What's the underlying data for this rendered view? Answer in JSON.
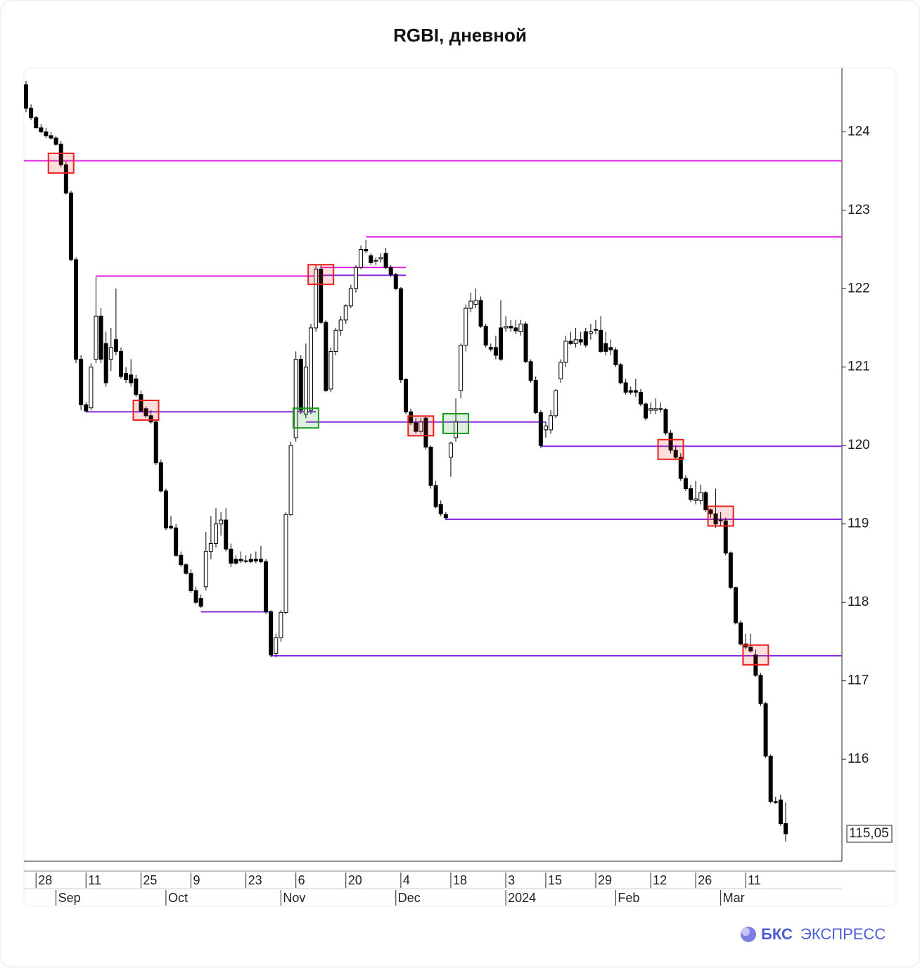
{
  "chart_data": {
    "type": "candlestick",
    "title": "RGBI, дневной",
    "open": [
      124.6,
      124.3,
      124.18,
      124.05,
      124.0,
      123.95,
      123.92,
      123.84,
      123.58,
      123.22,
      122.37,
      121.1,
      120.52,
      120.48,
      121.1,
      121.65,
      121.3,
      121.1,
      121.35,
      121.2,
      120.92,
      120.9,
      120.85,
      120.65,
      120.47,
      120.38,
      120.3,
      119.78,
      119.42,
      118.97,
      118.95,
      118.6,
      118.48,
      118.37,
      118.15,
      118.05,
      118.2,
      118.65,
      118.75,
      119.0,
      119.05,
      118.68,
      118.55,
      118.55,
      118.53,
      118.55,
      118.55,
      118.55,
      118.52,
      117.88,
      117.35,
      117.55,
      117.87,
      119.12,
      120.1,
      121.1,
      120.4,
      120.45,
      121.5,
      122.25,
      121.57,
      120.72,
      121.2,
      121.47,
      121.6,
      121.78,
      122.0,
      122.27,
      122.5,
      122.42,
      122.35,
      122.38,
      122.45,
      122.27,
      122.18,
      122.0,
      120.84,
      120.43,
      120.29,
      120.18,
      120.35,
      119.98,
      119.49,
      119.25,
      119.12,
      119.85,
      120.1,
      120.7,
      121.28,
      121.75,
      121.8,
      121.85,
      121.52,
      121.25,
      121.25,
      121.5,
      121.5,
      121.52,
      121.5,
      121.45,
      121.55,
      121.07,
      120.83,
      120.42,
      120.2,
      120.2,
      120.38,
      120.85,
      121.06,
      121.33,
      121.3,
      121.35,
      121.45,
      121.43,
      121.48,
      121.47,
      121.3,
      121.25,
      121.22,
      121.03,
      120.8,
      120.7,
      120.7,
      120.68,
      120.53,
      120.45,
      120.45,
      120.47,
      120.46,
      120.16,
      119.94,
      119.85,
      119.58,
      119.45,
      119.3,
      119.3,
      119.4,
      119.18,
      119.13,
      119.05,
      119.04,
      118.63,
      118.19,
      117.74,
      117.47,
      117.43,
      117.33,
      117.07,
      116.71,
      116.04,
      115.46,
      115.48,
      115.18
    ],
    "high": [
      124.65,
      124.35,
      124.2,
      124.1,
      124.05,
      124.0,
      123.95,
      123.88,
      123.62,
      123.25,
      122.4,
      121.15,
      120.55,
      121.05,
      122.15,
      121.75,
      121.45,
      121.5,
      122.0,
      121.25,
      121.0,
      121.1,
      120.9,
      120.7,
      120.5,
      120.45,
      120.32,
      119.82,
      119.45,
      119.1,
      119.0,
      118.65,
      118.5,
      118.42,
      118.2,
      118.1,
      118.9,
      119.1,
      119.2,
      119.15,
      119.2,
      118.75,
      118.6,
      118.65,
      118.6,
      118.62,
      118.65,
      118.72,
      118.55,
      117.9,
      117.6,
      117.9,
      119.15,
      120.05,
      121.2,
      121.15,
      121.3,
      121.55,
      122.3,
      122.3,
      121.6,
      121.25,
      121.5,
      121.65,
      121.8,
      122.05,
      122.3,
      122.55,
      122.62,
      122.45,
      122.4,
      122.45,
      122.52,
      122.3,
      122.2,
      122.02,
      120.86,
      120.47,
      120.35,
      120.35,
      120.38,
      120.0,
      119.55,
      119.3,
      119.15,
      120.05,
      120.6,
      121.3,
      121.8,
      121.95,
      122.0,
      121.9,
      121.55,
      121.3,
      121.4,
      121.85,
      121.65,
      121.6,
      121.6,
      121.6,
      121.58,
      121.1,
      120.88,
      120.45,
      120.3,
      120.45,
      120.72,
      121.1,
      121.4,
      121.45,
      121.5,
      121.45,
      121.5,
      121.55,
      121.6,
      121.65,
      121.45,
      121.35,
      121.25,
      121.05,
      120.85,
      120.75,
      120.85,
      120.72,
      120.55,
      120.55,
      120.6,
      120.55,
      120.48,
      120.2,
      120.0,
      119.9,
      119.62,
      119.5,
      119.55,
      119.5,
      119.42,
      119.2,
      119.45,
      119.15,
      119.08,
      118.65,
      118.2,
      117.77,
      117.6,
      117.6,
      117.4,
      117.1,
      116.73,
      116.06,
      115.52,
      115.55,
      115.45
    ],
    "low": [
      124.25,
      124.15,
      124.05,
      123.98,
      123.92,
      123.9,
      123.82,
      123.55,
      123.2,
      122.35,
      121.05,
      120.45,
      120.42,
      120.45,
      121.05,
      121.05,
      120.75,
      120.95,
      121.15,
      120.85,
      120.8,
      120.75,
      120.62,
      120.42,
      120.35,
      120.28,
      119.75,
      119.4,
      118.92,
      118.93,
      118.58,
      118.45,
      118.35,
      118.12,
      117.98,
      117.93,
      118.15,
      118.55,
      118.7,
      118.85,
      118.65,
      118.45,
      118.48,
      118.5,
      118.5,
      118.5,
      118.5,
      118.5,
      117.85,
      117.3,
      117.3,
      117.5,
      117.85,
      119.1,
      120.05,
      120.4,
      120.35,
      120.4,
      121.45,
      121.55,
      120.68,
      120.68,
      121.15,
      121.4,
      121.55,
      121.75,
      121.95,
      122.25,
      122.45,
      122.3,
      122.3,
      122.33,
      122.25,
      122.15,
      121.98,
      120.8,
      120.4,
      120.26,
      120.15,
      120.15,
      119.95,
      119.45,
      119.2,
      119.1,
      119.05,
      119.6,
      120.05,
      120.6,
      121.2,
      121.7,
      121.75,
      121.5,
      121.25,
      121.2,
      121.1,
      121.08,
      121.45,
      121.45,
      121.42,
      121.4,
      121.05,
      120.8,
      120.4,
      119.97,
      120.1,
      120.15,
      120.35,
      120.8,
      121.0,
      121.28,
      121.25,
      121.28,
      121.25,
      121.35,
      121.42,
      121.18,
      121.15,
      121.15,
      121.0,
      120.78,
      120.65,
      120.65,
      120.62,
      120.5,
      120.32,
      120.4,
      120.4,
      120.42,
      120.13,
      119.9,
      119.82,
      119.55,
      119.42,
      119.28,
      119.25,
      119.25,
      119.15,
      119.08,
      118.95,
      118.98,
      118.6,
      118.17,
      117.72,
      117.45,
      117.4,
      117.36,
      117.05,
      116.68,
      116.02,
      115.44,
      115.43,
      115.15,
      114.95
    ],
    "close": [
      124.3,
      124.18,
      124.05,
      124.0,
      123.95,
      123.92,
      123.84,
      123.58,
      123.22,
      122.37,
      121.1,
      120.52,
      120.44,
      121.0,
      121.65,
      121.1,
      120.8,
      121.25,
      121.2,
      120.88,
      120.84,
      120.8,
      120.65,
      120.44,
      120.38,
      120.3,
      119.78,
      119.42,
      118.95,
      118.95,
      118.6,
      118.48,
      118.37,
      118.15,
      118.0,
      117.95,
      118.65,
      118.75,
      119.0,
      119.05,
      118.68,
      118.5,
      118.5,
      118.53,
      118.53,
      118.52,
      118.53,
      118.52,
      117.88,
      117.33,
      117.55,
      117.87,
      119.12,
      120.0,
      121.1,
      120.45,
      121.0,
      121.5,
      122.25,
      121.57,
      120.7,
      121.2,
      121.47,
      121.6,
      121.78,
      122.0,
      122.27,
      122.5,
      122.48,
      122.33,
      122.36,
      122.4,
      122.27,
      122.18,
      122.0,
      120.84,
      120.43,
      120.29,
      120.18,
      120.3,
      119.98,
      119.49,
      119.22,
      119.13,
      119.08,
      120.03,
      120.3,
      121.28,
      121.75,
      121.84,
      121.85,
      121.52,
      121.28,
      121.23,
      121.15,
      121.1,
      121.52,
      121.5,
      121.46,
      121.55,
      121.07,
      120.83,
      120.42,
      120.0,
      120.25,
      120.38,
      120.7,
      121.06,
      121.33,
      121.3,
      121.35,
      121.32,
      121.28,
      121.45,
      121.47,
      121.2,
      121.2,
      121.22,
      121.03,
      120.8,
      120.68,
      120.68,
      120.68,
      120.53,
      120.35,
      120.47,
      120.47,
      120.46,
      120.16,
      119.94,
      119.85,
      119.58,
      119.45,
      119.31,
      119.32,
      119.4,
      119.18,
      119.13,
      119.0,
      119.04,
      118.63,
      118.19,
      117.74,
      117.47,
      117.43,
      117.38,
      117.07,
      116.71,
      116.04,
      115.46,
      115.45,
      115.18,
      115.05
    ],
    "day_ticks": [
      {
        "value": 2,
        "label": "28"
      },
      {
        "value": 12,
        "label": "11"
      },
      {
        "value": 23,
        "label": "25"
      },
      {
        "value": 33,
        "label": "9"
      },
      {
        "value": 44,
        "label": "23"
      },
      {
        "value": 54,
        "label": "6"
      },
      {
        "value": 64,
        "label": "20"
      },
      {
        "value": 75,
        "label": "4"
      },
      {
        "value": 85,
        "label": "18"
      },
      {
        "value": 96,
        "label": "3"
      },
      {
        "value": 104,
        "label": "15"
      },
      {
        "value": 114,
        "label": "29"
      },
      {
        "value": 125,
        "label": "12"
      },
      {
        "value": 134,
        "label": "26"
      },
      {
        "value": 144,
        "label": "11"
      }
    ],
    "month_ticks": [
      {
        "value": 6,
        "label": "Sep"
      },
      {
        "value": 28,
        "label": "Oct"
      },
      {
        "value": 51,
        "label": "Nov"
      },
      {
        "value": 74,
        "label": "Dec"
      },
      {
        "value": 96,
        "label": "2024"
      },
      {
        "value": 118,
        "label": "Feb"
      },
      {
        "value": 139,
        "label": "Mar"
      }
    ],
    "ylim": [
      114.7,
      124.81
    ],
    "yticks": [
      116,
      117,
      118,
      119,
      120,
      121,
      122,
      123,
      124
    ],
    "up_color": "#ffffff",
    "down_color": "#000000",
    "levels": [
      {
        "value": 123.63,
        "from": 0,
        "color": "#e020e0"
      },
      {
        "value": 122.66,
        "from": 68,
        "color": "#e020e0"
      },
      {
        "value": 122.16,
        "from": 14,
        "to": 59,
        "color": "#e020e0"
      },
      {
        "value": 122.27,
        "from": 59,
        "to": 76,
        "color": "#e020e0"
      },
      {
        "value": 122.17,
        "from": 59,
        "to": 76,
        "color": "#8a2be2"
      },
      {
        "value": 120.43,
        "from": 12,
        "to": 58,
        "color": "#8a2be2"
      },
      {
        "value": 120.3,
        "from": 56,
        "to": 104,
        "color": "#8a2be2"
      },
      {
        "value": 119.99,
        "from": 103,
        "color": "#8a2be2"
      },
      {
        "value": 119.06,
        "from": 84,
        "color": "#8a2be2"
      },
      {
        "value": 117.88,
        "from": 35,
        "to": 49,
        "color": "#8a2be2"
      },
      {
        "value": 117.32,
        "from": 49,
        "color": "#8a2be2"
      }
    ],
    "boxes": [
      {
        "index": 7,
        "value": 123.6,
        "color": "#e8211d"
      },
      {
        "index": 24,
        "value": 120.45,
        "color": "#e8211d"
      },
      {
        "index": 59,
        "value": 122.18,
        "color": "#e8211d"
      },
      {
        "index": 56,
        "value": 120.35,
        "color": "#1a9a1a"
      },
      {
        "index": 79,
        "value": 120.25,
        "color": "#e8211d"
      },
      {
        "index": 86,
        "value": 120.28,
        "color": "#1a9a1a"
      },
      {
        "index": 129,
        "value": 119.95,
        "color": "#e8211d"
      },
      {
        "index": 139,
        "value": 119.1,
        "color": "#e8211d"
      },
      {
        "index": 146,
        "value": 117.33,
        "color": "#e8211d"
      }
    ],
    "last_price": {
      "value": 115.05,
      "label": "115,05"
    }
  },
  "brand": {
    "name": "БКС",
    "product": "ЭКСПРЕСС"
  }
}
